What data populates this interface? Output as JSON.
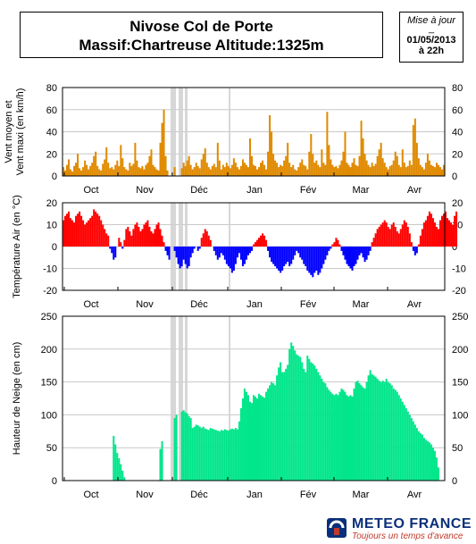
{
  "title": {
    "line1": "Nivose Col de Porte",
    "line2": "Massif:Chartreuse Altitude:1325m"
  },
  "update_box": {
    "label": "Mise à jour",
    "sep": "_",
    "date": "01/05/2013",
    "time": "à 22h"
  },
  "logo": {
    "name": "METEO FRANCE",
    "tagline": "Toujours un temps d'avance"
  },
  "colors": {
    "wind": "#e08a00",
    "temp_pos": "#ff0000",
    "temp_neg": "#0000ff",
    "snow": "#00e68a",
    "missing": "#d0d0d0",
    "grid": "#c8c8c8"
  },
  "chart_data": [
    {
      "type": "bar",
      "ylabel": "Vent moyen et\nVent maxi (en km/h)",
      "ylim": [
        0,
        80
      ],
      "yticks": [
        0,
        20,
        40,
        60,
        80
      ],
      "months": [
        "Oct",
        "Nov",
        "Déc",
        "Jan",
        "Fév",
        "Mar",
        "Avr"
      ],
      "x_range_days": 213,
      "missing_days": [
        [
          56,
          58
        ],
        [
          61,
          63
        ],
        [
          65,
          67
        ],
        [
          88,
          89
        ]
      ],
      "series": [
        {
          "values": [
            8,
            5,
            10,
            15,
            6,
            4,
            9,
            12,
            20,
            7,
            5,
            8,
            14,
            10,
            6,
            9,
            12,
            18,
            22,
            9,
            6,
            5,
            11,
            15,
            26,
            12,
            7,
            8,
            6,
            10,
            14,
            9,
            28,
            16,
            8,
            6,
            5,
            12,
            9,
            11,
            30,
            14,
            8,
            7,
            9,
            6,
            10,
            12,
            18,
            24,
            10,
            8,
            6,
            5,
            30,
            48,
            60,
            18,
            5,
            0,
            0,
            0,
            8,
            0,
            0,
            0,
            7,
            12,
            9,
            14,
            18,
            10,
            6,
            8,
            12,
            9,
            7,
            15,
            20,
            25,
            12,
            8,
            6,
            9,
            11,
            8,
            30,
            14,
            6,
            10,
            8,
            12,
            9,
            7,
            10,
            16,
            12,
            8,
            6,
            9,
            15,
            12,
            10,
            8,
            34,
            18,
            10,
            9,
            6,
            8,
            12,
            14,
            10,
            6,
            22,
            55,
            40,
            20,
            14,
            12,
            8,
            10,
            9,
            14,
            18,
            30,
            12,
            8,
            10,
            6,
            5,
            8,
            12,
            15,
            10,
            9,
            6,
            22,
            38,
            20,
            12,
            14,
            10,
            8,
            24,
            12,
            10,
            58,
            28,
            15,
            10,
            8,
            9,
            7,
            10,
            14,
            22,
            40,
            12,
            10,
            8,
            12,
            16,
            10,
            9,
            18,
            50,
            34,
            20,
            14,
            10,
            8,
            12,
            9,
            11,
            18,
            24,
            30,
            16,
            12,
            8,
            6,
            9,
            10,
            14,
            22,
            18,
            10,
            8,
            24,
            12,
            8,
            9,
            14,
            10,
            46,
            52,
            30,
            16,
            10,
            8,
            6,
            12,
            20,
            14,
            10,
            9,
            8,
            12,
            10,
            8,
            6,
            10
          ]
        }
      ]
    },
    {
      "type": "area",
      "ylabel": "Température Air (en °C)",
      "ylim": [
        -20,
        20
      ],
      "yticks": [
        -20,
        -10,
        0,
        10,
        20
      ],
      "months": [
        "Oct",
        "Nov",
        "Déc",
        "Jan",
        "Fév",
        "Mar",
        "Avr"
      ],
      "x_range_days": 213,
      "series": [
        {
          "values": [
            12,
            14,
            15,
            16,
            13,
            12,
            11,
            14,
            15,
            16,
            14,
            12,
            10,
            11,
            12,
            13,
            14,
            17,
            16,
            15,
            14,
            12,
            10,
            8,
            6,
            5,
            -1,
            -3,
            -6,
            -5,
            0,
            4,
            2,
            -1,
            3,
            8,
            9,
            7,
            5,
            8,
            10,
            11,
            9,
            7,
            8,
            10,
            11,
            12,
            9,
            7,
            6,
            8,
            10,
            11,
            8,
            5,
            2,
            -2,
            -4,
            -6,
            0,
            0,
            -2,
            -5,
            -8,
            -10,
            -9,
            -6,
            -8,
            -10,
            -9,
            -5,
            -3,
            -1,
            0,
            -2,
            -1,
            4,
            6,
            8,
            7,
            5,
            3,
            0,
            -2,
            -4,
            -6,
            -5,
            -3,
            -4,
            -6,
            -8,
            -9,
            -10,
            -12,
            -11,
            -8,
            -5,
            -3,
            -6,
            -9,
            -8,
            -6,
            -4,
            -3,
            -2,
            1,
            2,
            3,
            4,
            5,
            6,
            5,
            3,
            -2,
            -5,
            -7,
            -8,
            -9,
            -10,
            -11,
            -12,
            -11,
            -9,
            -8,
            -7,
            -9,
            -8,
            -6,
            -4,
            -2,
            -3,
            -5,
            -6,
            -8,
            -9,
            -11,
            -12,
            -13,
            -14,
            -12,
            -11,
            -13,
            -12,
            -10,
            -8,
            -6,
            -4,
            -2,
            -1,
            1,
            2,
            4,
            3,
            1,
            -2,
            -4,
            -6,
            -8,
            -9,
            -10,
            -11,
            -9,
            -8,
            -6,
            -4,
            -3,
            -5,
            -7,
            -6,
            -4,
            -2,
            2,
            4,
            6,
            8,
            9,
            10,
            11,
            12,
            11,
            9,
            8,
            10,
            11,
            9,
            7,
            6,
            8,
            10,
            12,
            11,
            9,
            6,
            2,
            -2,
            -4,
            -3,
            1,
            5,
            8,
            11,
            12,
            14,
            16,
            15,
            13,
            11,
            9,
            8,
            12,
            14,
            15,
            16,
            13,
            12,
            11,
            10,
            14,
            16
          ]
        }
      ]
    },
    {
      "type": "area",
      "ylabel": "Hauteur de Neige (en cm)",
      "ylim": [
        0,
        250
      ],
      "yticks": [
        0,
        50,
        100,
        150,
        200,
        250
      ],
      "months": [
        "Oct",
        "Nov",
        "Déc",
        "Jan",
        "Fév",
        "Mar",
        "Avr"
      ],
      "x_range_days": 213,
      "series": [
        {
          "values": [
            0,
            0,
            0,
            0,
            0,
            0,
            0,
            0,
            0,
            0,
            0,
            0,
            0,
            0,
            0,
            0,
            0,
            0,
            0,
            0,
            0,
            0,
            0,
            0,
            0,
            0,
            0,
            0,
            68,
            55,
            42,
            34,
            25,
            15,
            5,
            0,
            0,
            0,
            0,
            0,
            0,
            0,
            0,
            0,
            0,
            0,
            0,
            0,
            0,
            0,
            0,
            0,
            0,
            0,
            48,
            60,
            0,
            0,
            0,
            0,
            0,
            0,
            95,
            100,
            0,
            0,
            105,
            107,
            104,
            102,
            98,
            95,
            80,
            82,
            85,
            84,
            82,
            80,
            82,
            79,
            78,
            77,
            80,
            79,
            78,
            77,
            76,
            75,
            77,
            76,
            78,
            77,
            76,
            78,
            79,
            78,
            80,
            78,
            90,
            110,
            125,
            140,
            135,
            130,
            120,
            118,
            130,
            128,
            125,
            132,
            130,
            128,
            126,
            135,
            140,
            145,
            150,
            148,
            145,
            160,
            172,
            180,
            165,
            165,
            170,
            176,
            200,
            210,
            205,
            198,
            192,
            190,
            188,
            180,
            170,
            165,
            190,
            185,
            180,
            178,
            175,
            170,
            165,
            160,
            155,
            150,
            148,
            142,
            138,
            135,
            132,
            130,
            132,
            130,
            135,
            140,
            138,
            135,
            130,
            128,
            130,
            128,
            140,
            150,
            152,
            148,
            145,
            142,
            140,
            150,
            160,
            168,
            162,
            160,
            158,
            155,
            152,
            150,
            152,
            150,
            155,
            150,
            148,
            145,
            140,
            138,
            135,
            130,
            125,
            120,
            115,
            110,
            105,
            100,
            95,
            90,
            85,
            80,
            75,
            72,
            70,
            65,
            62,
            60,
            58,
            55,
            50,
            45,
            35,
            20,
            0
          ]
        }
      ]
    }
  ]
}
